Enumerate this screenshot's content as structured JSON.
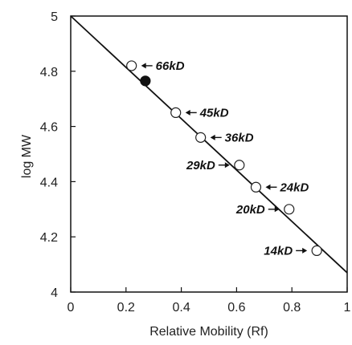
{
  "chart_data": {
    "type": "scatter",
    "xlabel": "Relative Mobility (Rf)",
    "ylabel": "log MW",
    "xlim": [
      0,
      1
    ],
    "ylim": [
      4,
      5
    ],
    "x_ticks": [
      "0",
      "0.2",
      "0.4",
      "0.6",
      "0.8",
      "1"
    ],
    "y_ticks": [
      "4",
      "4.2",
      "4.4",
      "4.6",
      "4.8",
      "5"
    ],
    "grid": false,
    "series": [
      {
        "marker": "open-circle",
        "points": [
          {
            "x": 0.22,
            "y": 4.82,
            "label": "66kD"
          },
          {
            "x": 0.38,
            "y": 4.65,
            "label": "45kD"
          },
          {
            "x": 0.47,
            "y": 4.56,
            "label": "36kD"
          },
          {
            "x": 0.61,
            "y": 4.46,
            "label": "29kD"
          },
          {
            "x": 0.67,
            "y": 4.38,
            "label": "24kD"
          },
          {
            "x": 0.79,
            "y": 4.3,
            "label": "20kD"
          },
          {
            "x": 0.89,
            "y": 4.15,
            "label": "14kD"
          }
        ]
      },
      {
        "marker": "filled-circle",
        "points": [
          {
            "x": 0.27,
            "y": 4.765
          }
        ]
      }
    ],
    "fit_line": {
      "x": [
        0.0,
        1.0
      ],
      "y": [
        5.0,
        4.07
      ]
    }
  }
}
